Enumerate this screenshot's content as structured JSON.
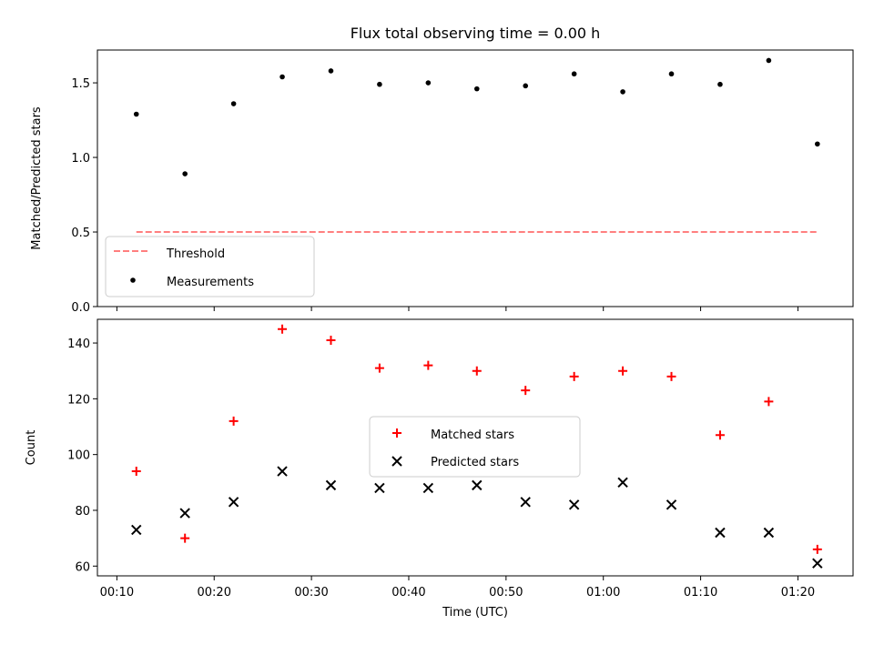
{
  "title": "Flux total observing time = 0.00 h",
  "colors": {
    "matched": "#ff0000",
    "predicted": "#000000",
    "threshold": "#ff7f7f",
    "measurement": "#000000"
  },
  "chart_data": [
    {
      "type": "scatter",
      "title": "Flux total observing time = 0.00 h",
      "xlabel": "",
      "ylabel": "Matched/Predicted stars",
      "xlim": [
        "00:08:00",
        "01:25:40"
      ],
      "ylim": [
        0,
        1.72
      ],
      "yticks": [
        "0.0",
        "0.5",
        "1.0",
        "1.5"
      ],
      "legend": {
        "position": "lower-left",
        "entries": [
          "Threshold",
          "Measurements"
        ]
      },
      "series": [
        {
          "name": "Threshold",
          "style": "dashed-line",
          "x": [
            "00:12",
            "01:22"
          ],
          "y": [
            0.5,
            0.5
          ]
        },
        {
          "name": "Measurements",
          "style": "dot",
          "x": [
            "00:12",
            "00:17",
            "00:22",
            "00:27",
            "00:32",
            "00:37",
            "00:42",
            "00:47",
            "00:52",
            "00:57",
            "01:02",
            "01:07",
            "01:12",
            "01:17",
            "01:22"
          ],
          "y": [
            1.29,
            0.89,
            1.36,
            1.54,
            1.58,
            1.49,
            1.5,
            1.46,
            1.48,
            1.56,
            1.44,
            1.56,
            1.49,
            1.65,
            1.09
          ]
        }
      ]
    },
    {
      "type": "scatter",
      "title": "",
      "xlabel": "Time (UTC)",
      "ylabel": "Count",
      "xlim": [
        "00:08:00",
        "01:25:40"
      ],
      "ylim": [
        56.5,
        148.5
      ],
      "xticks": [
        "00:10",
        "00:20",
        "00:30",
        "00:40",
        "00:50",
        "01:00",
        "01:10",
        "01:20"
      ],
      "yticks": [
        "60",
        "80",
        "100",
        "120",
        "140"
      ],
      "legend": {
        "position": "center",
        "entries": [
          "Matched stars",
          "Predicted stars"
        ]
      },
      "series": [
        {
          "name": "Matched stars",
          "marker": "plus",
          "x": [
            "00:12",
            "00:17",
            "00:22",
            "00:27",
            "00:32",
            "00:37",
            "00:42",
            "00:47",
            "00:52",
            "00:57",
            "01:02",
            "01:07",
            "01:12",
            "01:17",
            "01:22"
          ],
          "y": [
            94,
            70,
            112,
            145,
            141,
            131,
            132,
            130,
            123,
            128,
            130,
            128,
            107,
            119,
            66
          ]
        },
        {
          "name": "Predicted stars",
          "marker": "x",
          "x": [
            "00:12",
            "00:17",
            "00:22",
            "00:27",
            "00:32",
            "00:37",
            "00:42",
            "00:47",
            "00:52",
            "00:57",
            "01:02",
            "01:07",
            "01:12",
            "01:17",
            "01:22"
          ],
          "y": [
            73,
            79,
            83,
            94,
            89,
            88,
            88,
            89,
            83,
            82,
            90,
            82,
            72,
            72,
            61
          ]
        }
      ]
    }
  ]
}
